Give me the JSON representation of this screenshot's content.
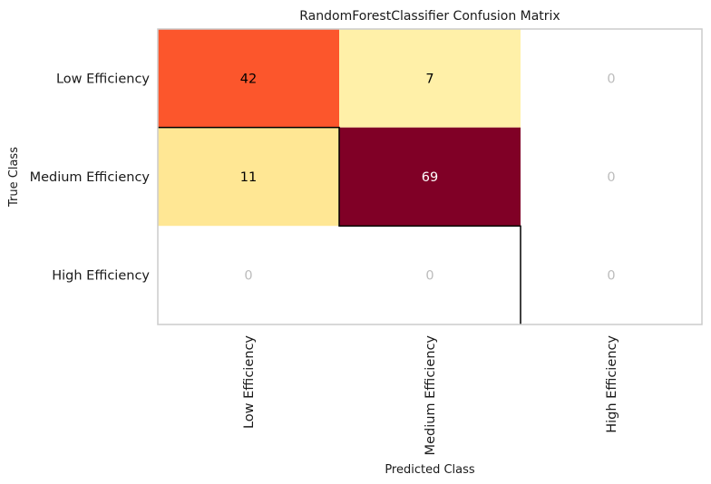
{
  "chart_data": {
    "type": "heatmap",
    "title": "RandomForestClassifier Confusion Matrix",
    "xlabel": "Predicted Class",
    "ylabel": "True Class",
    "row_labels": [
      "Low Efficiency",
      "Medium Efficiency",
      "High Efficiency"
    ],
    "col_labels": [
      "Low Efficiency",
      "Medium Efficiency",
      "High Efficiency"
    ],
    "values": [
      [
        42,
        7,
        0
      ],
      [
        11,
        69,
        0
      ],
      [
        0,
        0,
        0
      ]
    ],
    "colormap": "YlOrRd",
    "zero_cell_color": "#ffffff",
    "zero_text_color": "#bcbcbc",
    "grid": false
  }
}
